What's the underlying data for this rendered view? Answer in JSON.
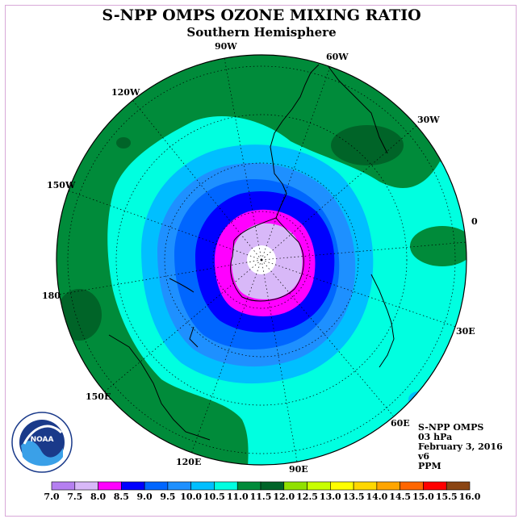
{
  "title": "S-NPP OMPS OZONE MIXING RATIO",
  "subtitle": "Southern Hemisphere",
  "longitude_labels": [
    "90W",
    "60W",
    "30W",
    "0",
    "30E",
    "60E",
    "90E",
    "120E",
    "150E",
    "180",
    "150W",
    "120W"
  ],
  "info": {
    "instrument": "S-NPP OMPS",
    "level": "03 hPa",
    "date": "February 3, 2016",
    "version": "v6",
    "units": "PPM"
  },
  "logo_text": "NOAA",
  "colorbar": {
    "ticks": [
      "7.0",
      "7.5",
      "8.0",
      "8.5",
      "9.0",
      "9.5",
      "10.0",
      "10.5",
      "11.0",
      "11.5",
      "12.0",
      "12.5",
      "13.0",
      "13.5",
      "14.0",
      "14.5",
      "15.0",
      "15.5",
      "16.0"
    ],
    "colors": [
      "#b57ff0",
      "#d8b8f8",
      "#ff00ff",
      "#0000ff",
      "#0066ff",
      "#1e90ff",
      "#00bfff",
      "#00ffe0",
      "#008b3a",
      "#006428",
      "#90e000",
      "#c8ff00",
      "#ffff00",
      "#ffd700",
      "#ffa500",
      "#ff6600",
      "#ff0000",
      "#8b4513"
    ]
  }
}
